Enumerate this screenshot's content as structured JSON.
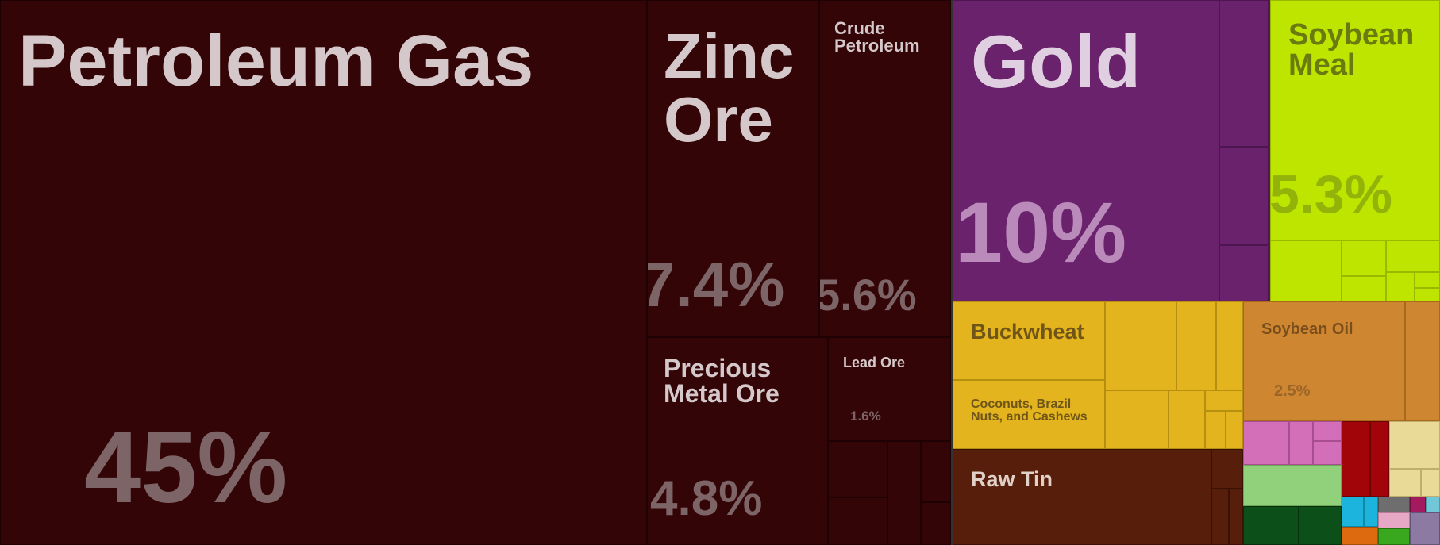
{
  "chart_data": {
    "type": "treemap",
    "title": "",
    "items": [
      {
        "name": "Petroleum Gas",
        "share_pct": 45,
        "label": "45%",
        "color": "#330507"
      },
      {
        "name": "Zinc Ore",
        "share_pct": 7.4,
        "label": "7.4%",
        "color": "#330507"
      },
      {
        "name": "Crude Petroleum",
        "share_pct": 5.6,
        "label": "5.6%",
        "color": "#330507"
      },
      {
        "name": "Precious Metal Ore",
        "share_pct": 4.8,
        "label": "4.8%",
        "color": "#330507"
      },
      {
        "name": "Lead Ore",
        "share_pct": 1.6,
        "label": "1.6%",
        "color": "#330507"
      },
      {
        "name": "Gold",
        "share_pct": 10,
        "label": "10%",
        "color": "#69226b"
      },
      {
        "name": "Soybean Meal",
        "share_pct": 5.3,
        "label": "5.3%",
        "color": "#bde500"
      },
      {
        "name": "Buckwheat",
        "share_pct": null,
        "label": "",
        "color": "#e3b41d"
      },
      {
        "name": "Coconuts, Brazil Nuts, and Cashews",
        "share_pct": null,
        "label": "",
        "color": "#e3b41d"
      },
      {
        "name": "Soybean Oil",
        "share_pct": 2.5,
        "label": "2.5%",
        "color": "#cf8631"
      },
      {
        "name": "Raw Tin",
        "share_pct": null,
        "label": "",
        "color": "#571f0b"
      }
    ]
  }
}
